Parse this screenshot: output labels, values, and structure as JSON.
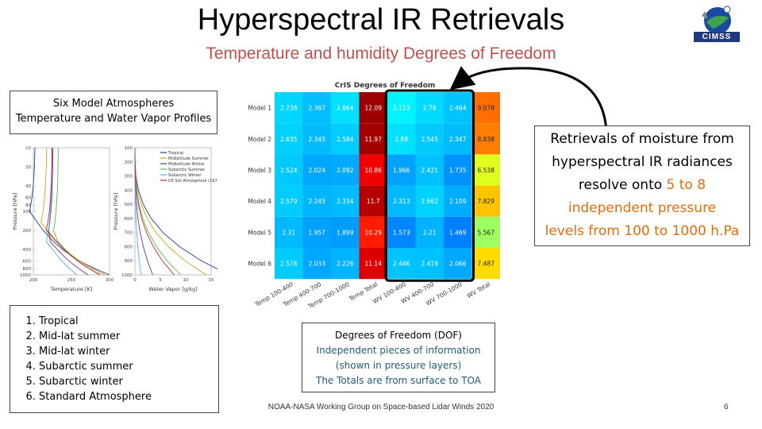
{
  "slide": {
    "title": "Hyperspectral IR Retrievals",
    "subtitle": "Temperature and humidity Degrees of Freedom",
    "logo_text": "CIMSS",
    "page_number": "6",
    "footer": "NOAA-NASA Working Group on Space-based Lidar Winds 2020"
  },
  "left_panel": {
    "heading_line1": "Six Model Atmospheres",
    "heading_line2": "Temperature and Water Vapor Profiles",
    "list": [
      "Tropical",
      "Mid-lat summer",
      "Mid-lat winter",
      "Subarctic summer",
      "Subarctic winter",
      "Standard Atmosphere"
    ]
  },
  "profiles_chart": {
    "legend": [
      "Tropical",
      "Midlatitude Summer",
      "Midlatitude Winter",
      "Subarctic Summer",
      "Subarctic Winter",
      "US Std Atmosphere (1976)"
    ],
    "colors": [
      "#1f3a93",
      "#d4a017",
      "#7b2d8e",
      "#6ab04c",
      "#4fb3e8",
      "#b03030"
    ],
    "temp_xlabel": "Temperature [K]",
    "wv_xlabel": "Water Vapor [g/kg]",
    "ylabel": "Pressure [hPa]",
    "temp_xticks": [
      "200",
      "250",
      "300"
    ],
    "wv_xticks": [
      "0",
      "5",
      "10",
      "15"
    ],
    "temp_yticks": [
      "10",
      "20",
      "40",
      "60",
      "80",
      "100",
      "200",
      "400",
      "600",
      "800",
      "1000"
    ],
    "wv_yticks": [
      "100",
      "200",
      "300",
      "400",
      "500",
      "600",
      "700",
      "800",
      "900",
      "1000"
    ]
  },
  "right_panel": {
    "line1": "Retrievals of moisture from",
    "line2": "hyperspectral IR radiances",
    "line3_pre": "resolve onto ",
    "line3_hl": "5 to 8",
    "line4": "independent pressure",
    "line5": "levels from 100 to 1000 h.Pa"
  },
  "dof_box": {
    "line1": "Degrees of Freedom (DOF)",
    "line2": "Independent pieces of information",
    "line3": "(shown in pressure layers)",
    "line4": "The Totals are from surface to TOA"
  },
  "chart_data": {
    "type": "heatmap",
    "title": "CrIS Degrees of Freedom",
    "rows": [
      "Model 1",
      "Model 2",
      "Model 3",
      "Model 4",
      "Model 5",
      "Model 6"
    ],
    "columns": [
      "Temp 100-400",
      "Temp 400-700",
      "Temp 700-1000",
      "Temp Total",
      "WV 100-400",
      "WV 400-700",
      "WV 700-1000",
      "WV Total"
    ],
    "values": [
      [
        2.738,
        2.367,
        2.864,
        12.09,
        3.133,
        2.78,
        2.464,
        9.078
      ],
      [
        2.635,
        2.345,
        2.584,
        11.97,
        2.88,
        2.545,
        2.347,
        8.838
      ],
      [
        2.524,
        2.024,
        2.092,
        10.86,
        1.966,
        2.421,
        1.735,
        6.538
      ],
      [
        2.579,
        2.245,
        2.334,
        11.7,
        2.313,
        2.662,
        2.109,
        7.829
      ],
      [
        2.31,
        1.957,
        1.899,
        10.29,
        1.573,
        2.21,
        1.469,
        5.567
      ],
      [
        2.576,
        2.033,
        2.226,
        11.14,
        2.446,
        2.419,
        2.066,
        7.487
      ]
    ],
    "colorscale": "jet",
    "highlighted_columns": [
      "WV 100-400",
      "WV 400-700",
      "WV 700-1000"
    ]
  }
}
